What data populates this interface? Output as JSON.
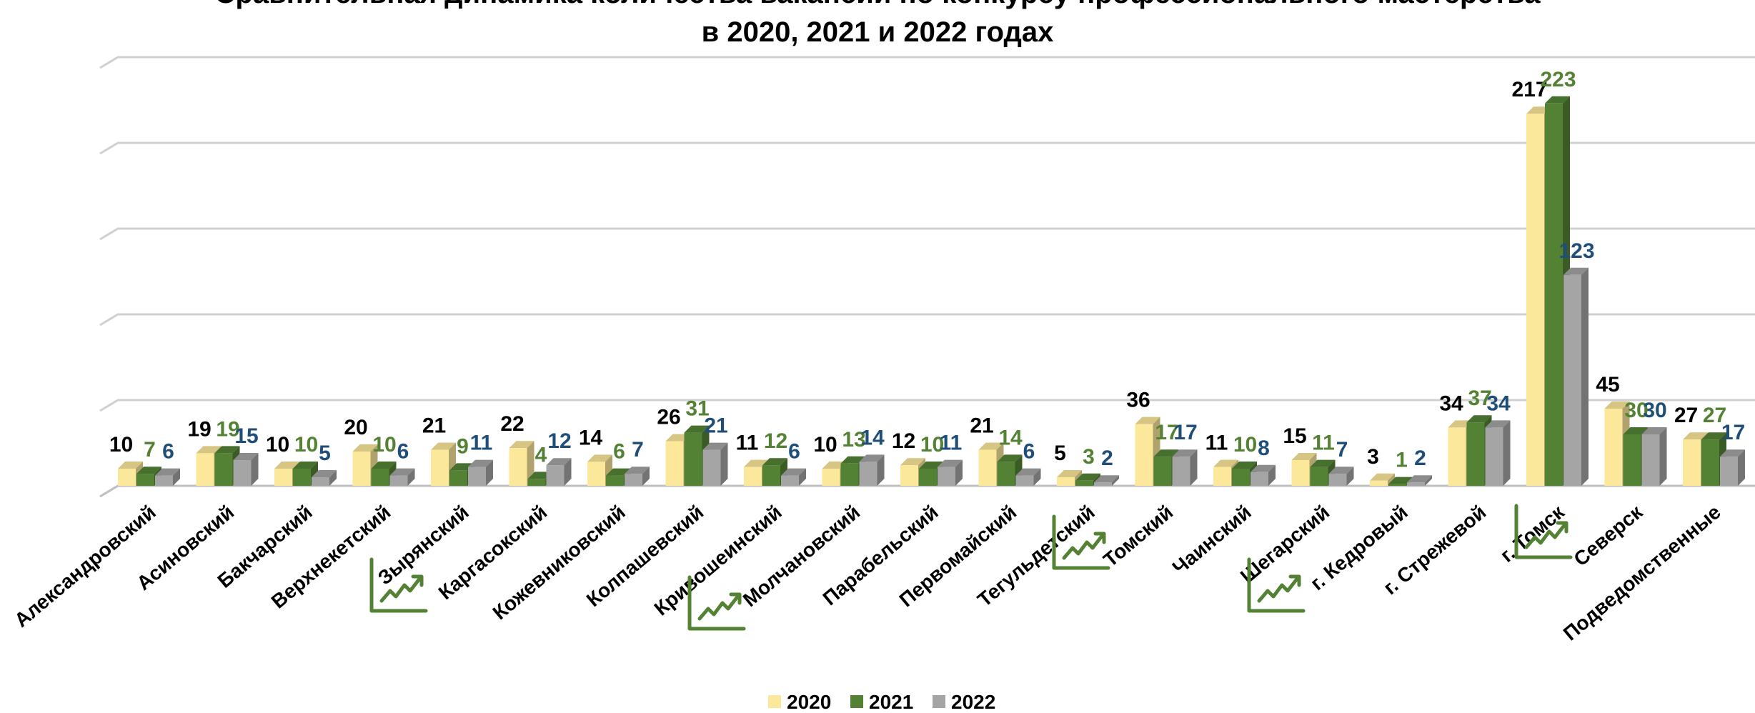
{
  "chart_data": {
    "type": "bar",
    "title_line1": "Сравнительная динамика количества вакансий по конкурсу профессионального мастерства",
    "title_line2": "в 2020, 2021 и 2022 годах",
    "categories": [
      "Александровский",
      "Асиновский",
      "Бакчарский",
      "Верхнекетский",
      "Зырянский",
      "Каргасокский",
      "Кожевниковский",
      "Колпашевский",
      "Кривошеинский",
      "Молчановский",
      "Парабельский",
      "Первомайский",
      "Тегульдетский",
      "Томский",
      "Чаинский",
      "Шегарский",
      "г. Кедровый",
      "г. Стрежевой",
      "г. Томск",
      "Северск",
      "Подведомственные"
    ],
    "series": [
      {
        "name": "2020",
        "color": "#FCE89A",
        "label_color": "#000000",
        "values": [
          10,
          19,
          10,
          20,
          21,
          22,
          14,
          26,
          11,
          10,
          12,
          21,
          5,
          36,
          11,
          15,
          3,
          34,
          217,
          45,
          27
        ]
      },
      {
        "name": "2021",
        "color": "#548235",
        "label_color": "#548235",
        "values": [
          7,
          19,
          10,
          10,
          9,
          4,
          6,
          31,
          12,
          13,
          10,
          14,
          3,
          17,
          10,
          11,
          1,
          37,
          223,
          30,
          27
        ]
      },
      {
        "name": "2022",
        "color": "#A5A5A5",
        "label_color": "#1F4E79",
        "values": [
          6,
          15,
          5,
          6,
          11,
          12,
          7,
          21,
          6,
          14,
          11,
          6,
          2,
          17,
          8,
          7,
          2,
          34,
          123,
          30,
          17
        ]
      }
    ],
    "ylim": [
      0,
      250
    ],
    "grid": true,
    "legend_position": "bottom",
    "trend_icons_after": [
      "Зырянский",
      "Кривошеинский",
      "Тегульдетский",
      "Чаинский",
      "г. Томск"
    ]
  }
}
